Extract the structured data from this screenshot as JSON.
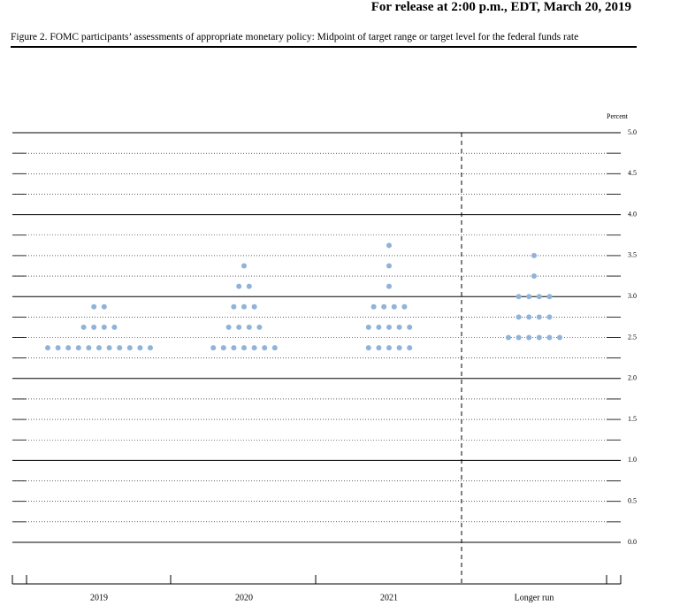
{
  "header": {
    "release": "For release at 2:00 p.m., EDT, March 20, 2019"
  },
  "chart_data": {
    "type": "dot",
    "title": "Figure 2. FOMC participants’ assessments of appropriate monetary policy: Midpoint of target range or target level for the federal funds rate",
    "y_label": "Percent",
    "categories": [
      "2019",
      "2020",
      "2021",
      "Longer run"
    ],
    "dots": [
      [
        {
          "value": 2.875,
          "count": 2
        },
        {
          "value": 2.625,
          "count": 4
        },
        {
          "value": 2.375,
          "count": 11
        }
      ],
      [
        {
          "value": 3.375,
          "count": 1
        },
        {
          "value": 3.125,
          "count": 2
        },
        {
          "value": 2.875,
          "count": 3
        },
        {
          "value": 2.625,
          "count": 4
        },
        {
          "value": 2.375,
          "count": 7
        }
      ],
      [
        {
          "value": 3.625,
          "count": 1
        },
        {
          "value": 3.375,
          "count": 1
        },
        {
          "value": 3.125,
          "count": 1
        },
        {
          "value": 2.875,
          "count": 4
        },
        {
          "value": 2.625,
          "count": 5
        },
        {
          "value": 2.375,
          "count": 5
        }
      ],
      [
        {
          "value": 3.5,
          "count": 1
        },
        {
          "value": 3.25,
          "count": 1
        },
        {
          "value": 3.0,
          "count": 4
        },
        {
          "value": 2.75,
          "count": 4
        },
        {
          "value": 2.5,
          "count": 6
        }
      ]
    ],
    "color": "#8fb3d9",
    "ylim": [
      0,
      5
    ],
    "yticks": [
      {
        "value": 0,
        "label": "0.0"
      },
      0.5,
      {
        "value": 1,
        "label": "1.0"
      },
      1.5,
      {
        "value": 2,
        "label": "2.0"
      },
      2.5,
      {
        "value": 3,
        "label": "3.0"
      },
      3.5,
      {
        "value": 4,
        "label": "4.0"
      },
      4.5,
      {
        "value": 5,
        "label": "5.0"
      }
    ],
    "grid": true
  }
}
